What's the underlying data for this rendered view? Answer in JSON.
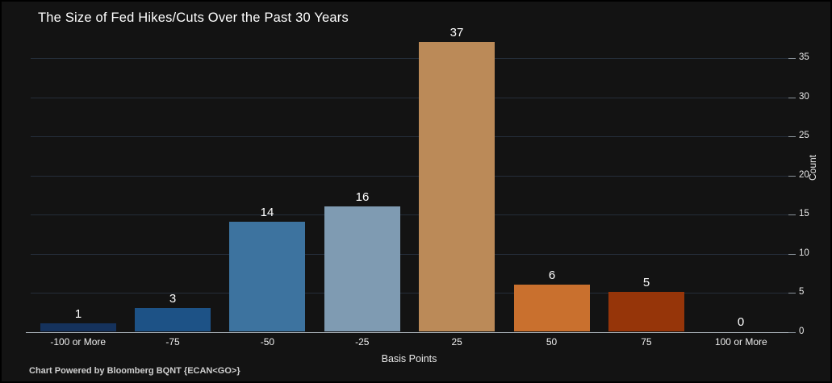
{
  "chart": {
    "title": "The Size of Fed Hikes/Cuts Over the Past 30 Years",
    "x_axis_title": "Basis Points",
    "y_axis_title": "Count",
    "footer": "Chart Powered by Bloomberg BQNT  {ECAN<GO>}"
  },
  "chart_data": {
    "type": "bar",
    "title": "The Size of Fed Hikes/Cuts Over the Past 30 Years",
    "categories": [
      "-100 or More",
      "-75",
      "-50",
      "-25",
      "25",
      "50",
      "75",
      "100 or More"
    ],
    "values": [
      1,
      3,
      14,
      16,
      37,
      6,
      5,
      0
    ],
    "bar_colors": [
      "#15325c",
      "#1d5286",
      "#3d739f",
      "#7f9bb2",
      "#bb8a58",
      "#c9702e",
      "#963509",
      "#7a2a06"
    ],
    "data_labels": [
      1,
      3,
      14,
      16,
      37,
      6,
      5,
      0
    ],
    "xlabel": "Basis Points",
    "ylabel": "Count",
    "ylim": [
      0,
      37.1
    ],
    "yticks": [
      0,
      5,
      10,
      15,
      20,
      25,
      30,
      35
    ],
    "y_axis_side": "right",
    "grid": true,
    "legend": false,
    "colors": {
      "background": "#131313",
      "gridline": "#252e3a",
      "axis_line": "#aeb6bd",
      "tick_text": "#e8e8e8",
      "title_text": "#ffffff",
      "data_label_text": "#ffffff",
      "footer_text": "#cfcfcf"
    }
  }
}
